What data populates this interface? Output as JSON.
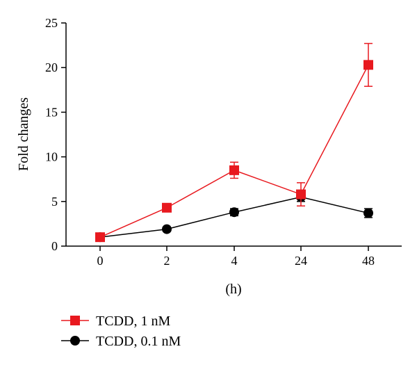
{
  "chart_data": {
    "type": "line",
    "title": "",
    "xlabel": "(h)",
    "ylabel": "Fold changes",
    "categories": [
      "0",
      "2",
      "4",
      "24",
      "48"
    ],
    "ylim": [
      0,
      25
    ],
    "yticks": [
      0,
      5,
      10,
      15,
      20,
      25
    ],
    "grid": false,
    "legend_position": "bottom-left",
    "series": [
      {
        "name": "TCDD, 1 nM",
        "color": "#e8191f",
        "marker": "square",
        "values": [
          1.0,
          4.3,
          8.5,
          5.8,
          20.3
        ],
        "errors": [
          0.2,
          0.4,
          0.9,
          1.3,
          2.4
        ]
      },
      {
        "name": "TCDD, 0.1 nM",
        "color": "#000000",
        "marker": "circle",
        "values": [
          1.0,
          1.9,
          3.8,
          5.5,
          3.7
        ],
        "errors": [
          0.2,
          0.2,
          0.4,
          0.5,
          0.5
        ]
      }
    ]
  }
}
